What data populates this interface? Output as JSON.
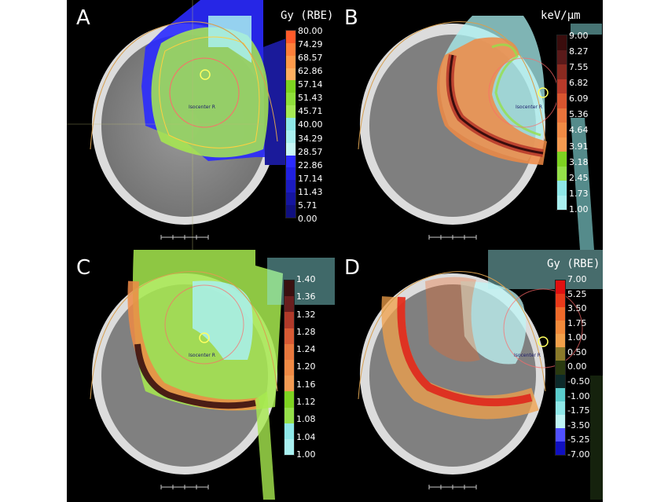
{
  "panels": [
    {
      "letter": "A",
      "unit": "Gy (RBE)",
      "isocenter_label": "Isocenter R",
      "ticks": [
        "80.00",
        "74.29",
        "68.57",
        "62.86",
        "57.14",
        "51.43",
        "45.71",
        "40.00",
        "34.29",
        "28.57",
        "22.86",
        "17.14",
        "11.43",
        "5.71",
        "0.00"
      ],
      "bar_colors": [
        "#ff5a2a",
        "#ff7f3a",
        "#ff9a4a",
        "#ffb060",
        "#7ed321",
        "#8fe03a",
        "#a6ea55",
        "#8ee8e8",
        "#a9f0f0",
        "#c7f7f7",
        "#2b2bff",
        "#2020e0",
        "#1b1bc0",
        "#1515a0",
        "#101080"
      ]
    },
    {
      "letter": "B",
      "unit": "keV/µm",
      "isocenter_label": "Isocenter R",
      "ticks": [
        "9.00",
        "8.27",
        "7.55",
        "6.82",
        "6.09",
        "5.36",
        "4.64",
        "3.91",
        "3.18",
        "2.45",
        "1.73",
        "1.00"
      ],
      "bar_colors": [
        "#3a0d0d",
        "#5a1a1a",
        "#8a2a20",
        "#b83a2a",
        "#d9552f",
        "#e8733b",
        "#f08a44",
        "#f49a50",
        "#7ed321",
        "#95e04a",
        "#8ee8e8",
        "#a9f0f0"
      ]
    },
    {
      "letter": "C",
      "unit": "",
      "isocenter_label": "Isocenter R",
      "ticks": [
        "1.40",
        "1.36",
        "1.32",
        "1.28",
        "1.24",
        "1.20",
        "1.16",
        "1.12",
        "1.08",
        "1.04",
        "1.00"
      ],
      "bar_colors": [
        "#3a1010",
        "#6a1e1e",
        "#b03a2a",
        "#d85a34",
        "#e8773d",
        "#ef8a45",
        "#f29a52",
        "#7ed321",
        "#95e04a",
        "#8ee8e8",
        "#a9f0f0"
      ]
    },
    {
      "letter": "D",
      "unit": "Gy (RBE)",
      "isocenter_label": "Isocenter R",
      "ticks": [
        "7.00",
        "5.25",
        "3.50",
        "1.75",
        "1.00",
        "0.50",
        "0.00",
        "-0.50",
        "-1.00",
        "-1.75",
        "-3.50",
        "-5.25",
        "-7.00"
      ],
      "bar_colors": [
        "#e01010",
        "#e83a1a",
        "#ef6a2a",
        "#f28a3a",
        "#f2a04a",
        "#8a7a2a",
        "#2a3a10",
        "#0d2a2a",
        "#5acccc",
        "#8ee8e8",
        "#bff5f5",
        "#5050ff",
        "#1010c0"
      ]
    }
  ]
}
